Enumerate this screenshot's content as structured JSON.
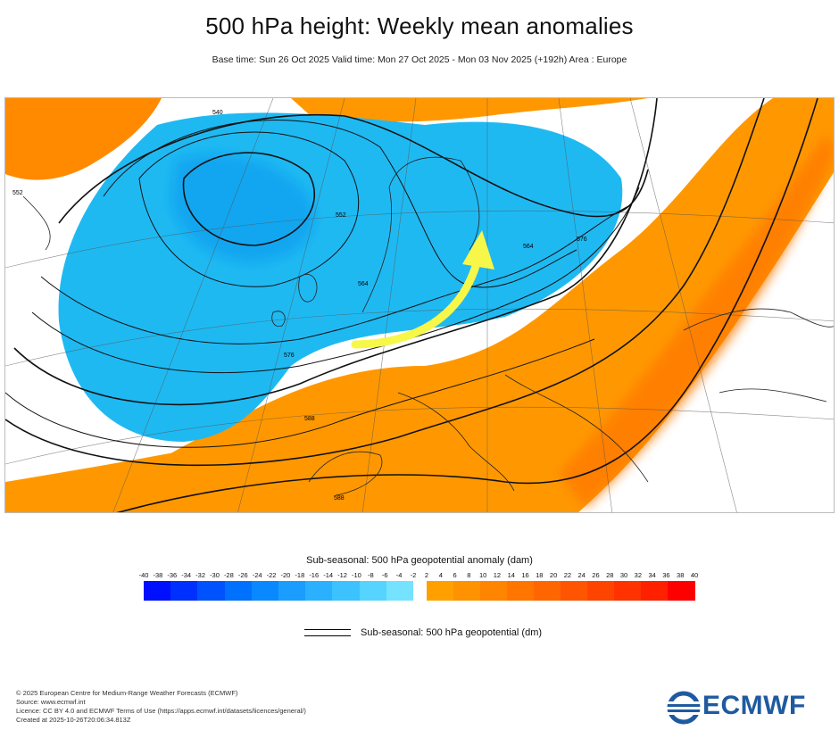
{
  "header": {
    "title": "500 hPa height: Weekly mean anomalies",
    "subtitle": "Base time: Sun 26 Oct 2025 Valid time: Mon 27 Oct 2025 - Mon 03 Nov 2025 (+192h) Area : Europe"
  },
  "map": {
    "contour_labels": [
      "540",
      "552",
      "564",
      "576",
      "588",
      "552",
      "564",
      "576",
      "588"
    ],
    "colors": {
      "negative_anomaly": "#1fb9f2",
      "positive_anomaly": "#ff9800",
      "strong_positive": "#ff7a00",
      "arrow": "#f7f74a"
    }
  },
  "colorbar": {
    "title": "Sub-seasonal: 500 hPa geopotential anomaly (dam)",
    "negative_ticks": [
      "-40",
      "-38",
      "-36",
      "-34",
      "-32",
      "-30",
      "-28",
      "-26",
      "-24",
      "-22",
      "-20",
      "-18",
      "-16",
      "-14",
      "-12",
      "-10",
      "-8",
      "-6",
      "-4",
      "-2"
    ],
    "positive_ticks": [
      "2",
      "4",
      "6",
      "8",
      "10",
      "12",
      "14",
      "16",
      "18",
      "20",
      "22",
      "24",
      "26",
      "28",
      "30",
      "32",
      "34",
      "36",
      "38",
      "40"
    ],
    "negative_colors": [
      "#0010ff",
      "#0030ff",
      "#0052ff",
      "#0070ff",
      "#0a88ff",
      "#1a9dff",
      "#2ab0ff",
      "#3bc2ff",
      "#55d4ff",
      "#75e2ff"
    ],
    "positive_colors": [
      "#ffa000",
      "#ff9200",
      "#ff8400",
      "#ff7500",
      "#ff6600",
      "#ff5500",
      "#ff4400",
      "#ff3200",
      "#ff2000",
      "#ff0000"
    ]
  },
  "legend": {
    "contour_label": "Sub-seasonal: 500 hPa geopotential (dm)"
  },
  "footer": {
    "line1": "© 2025 European Centre for Medium-Range Weather Forecasts (ECMWF)",
    "line2": "Source: www.ecmwf.int",
    "line3": "Licence: CC BY 4.0 and ECMWF Terms of Use (https://apps.ecmwf.int/datasets/licences/general/)",
    "line4": "Created at 2025-10-26T20:06:34.813Z"
  },
  "logo": {
    "text": "ECMWF",
    "color": "#1f5aa0"
  }
}
